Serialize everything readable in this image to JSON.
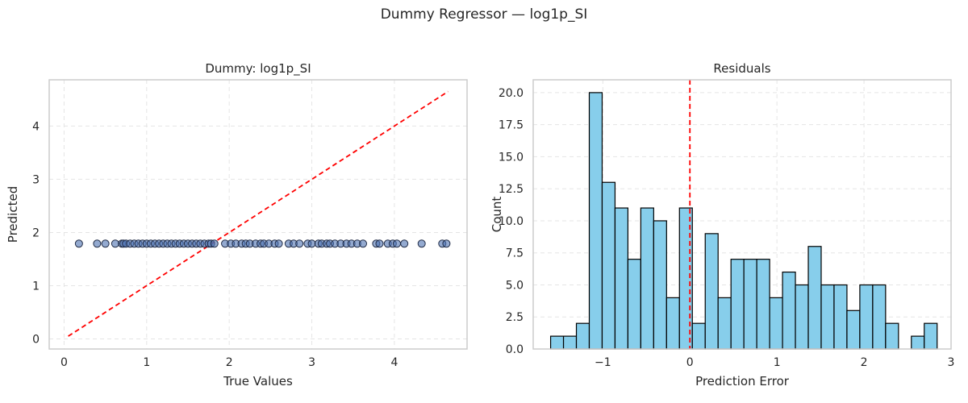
{
  "figure": {
    "suptitle": "Dummy Regressor — log1p_SI"
  },
  "chart_data": [
    {
      "type": "scatter",
      "title": "Dummy: log1p_SI",
      "xlabel": "True Values",
      "ylabel": "Predicted",
      "xlim": [
        -0.18,
        4.88
      ],
      "ylim": [
        -0.19,
        4.87
      ],
      "xticks": [
        0,
        1,
        2,
        3,
        4
      ],
      "yticks": [
        0,
        1,
        2,
        3,
        4
      ],
      "grid": true,
      "colors": {
        "points": "#4C72B0",
        "reference_line": "#FF0000"
      },
      "reference_line": {
        "style": "dashed",
        "x": [
          0.05,
          4.65
        ],
        "y": [
          0.05,
          4.65
        ]
      },
      "series": [
        {
          "x": [
            0.18,
            0.4,
            0.5,
            0.62,
            0.7,
            0.72,
            0.75,
            0.8,
            0.85,
            0.9,
            0.95,
            1.0,
            1.05,
            1.1,
            1.15,
            1.2,
            1.25,
            1.3,
            1.35,
            1.4,
            1.45,
            1.5,
            1.55,
            1.6,
            1.65,
            1.7,
            1.75,
            1.78,
            1.82,
            1.95,
            2.02,
            2.08,
            2.15,
            2.2,
            2.25,
            2.32,
            2.38,
            2.42,
            2.48,
            2.55,
            2.6,
            2.72,
            2.78,
            2.85,
            2.95,
            3.0,
            3.08,
            3.12,
            3.18,
            3.22,
            3.28,
            3.35,
            3.42,
            3.48,
            3.55,
            3.62,
            3.78,
            3.82,
            3.92,
            3.98,
            4.03,
            4.12,
            4.33,
            4.58,
            4.63
          ],
          "y": [
            1.79,
            1.79,
            1.79,
            1.79,
            1.79,
            1.79,
            1.79,
            1.79,
            1.79,
            1.79,
            1.79,
            1.79,
            1.79,
            1.79,
            1.79,
            1.79,
            1.79,
            1.79,
            1.79,
            1.79,
            1.79,
            1.79,
            1.79,
            1.79,
            1.79,
            1.79,
            1.79,
            1.79,
            1.79,
            1.79,
            1.79,
            1.79,
            1.79,
            1.79,
            1.79,
            1.79,
            1.79,
            1.79,
            1.79,
            1.79,
            1.79,
            1.79,
            1.79,
            1.79,
            1.79,
            1.79,
            1.79,
            1.79,
            1.79,
            1.79,
            1.79,
            1.79,
            1.79,
            1.79,
            1.79,
            1.79,
            1.79,
            1.79,
            1.79,
            1.79,
            1.79,
            1.79,
            1.79,
            1.79,
            1.79
          ]
        }
      ]
    },
    {
      "type": "bar",
      "title": "Residuals",
      "xlabel": "Prediction Error",
      "ylabel": "Count",
      "xlim": [
        -1.8,
        3.0
      ],
      "ylim": [
        0,
        21
      ],
      "xticks": [
        -1,
        0,
        1,
        2,
        3
      ],
      "xtick_labels": [
        "−1",
        "0",
        "1",
        "2",
        "3"
      ],
      "yticks": [
        0,
        2.5,
        5,
        7.5,
        10,
        12.5,
        15,
        17.5,
        20
      ],
      "ytick_labels": [
        "0.0",
        "2.5",
        "5.0",
        "7.5",
        "10.0",
        "12.5",
        "15.0",
        "17.5",
        "20.0"
      ],
      "grid": true,
      "colors": {
        "bars": "#87CEEB",
        "bar_edge": "#000000",
        "zero_line": "#FF0000"
      },
      "zero_line": {
        "style": "dashed",
        "x": 0
      },
      "bin_start": -1.6,
      "bin_width": 0.148,
      "values": [
        1,
        1,
        2,
        20,
        13,
        11,
        7,
        11,
        10,
        4,
        11,
        2,
        9,
        4,
        7,
        7,
        7,
        4,
        6,
        5,
        8,
        5,
        5,
        3,
        5,
        5,
        2,
        0,
        1,
        2
      ]
    }
  ]
}
